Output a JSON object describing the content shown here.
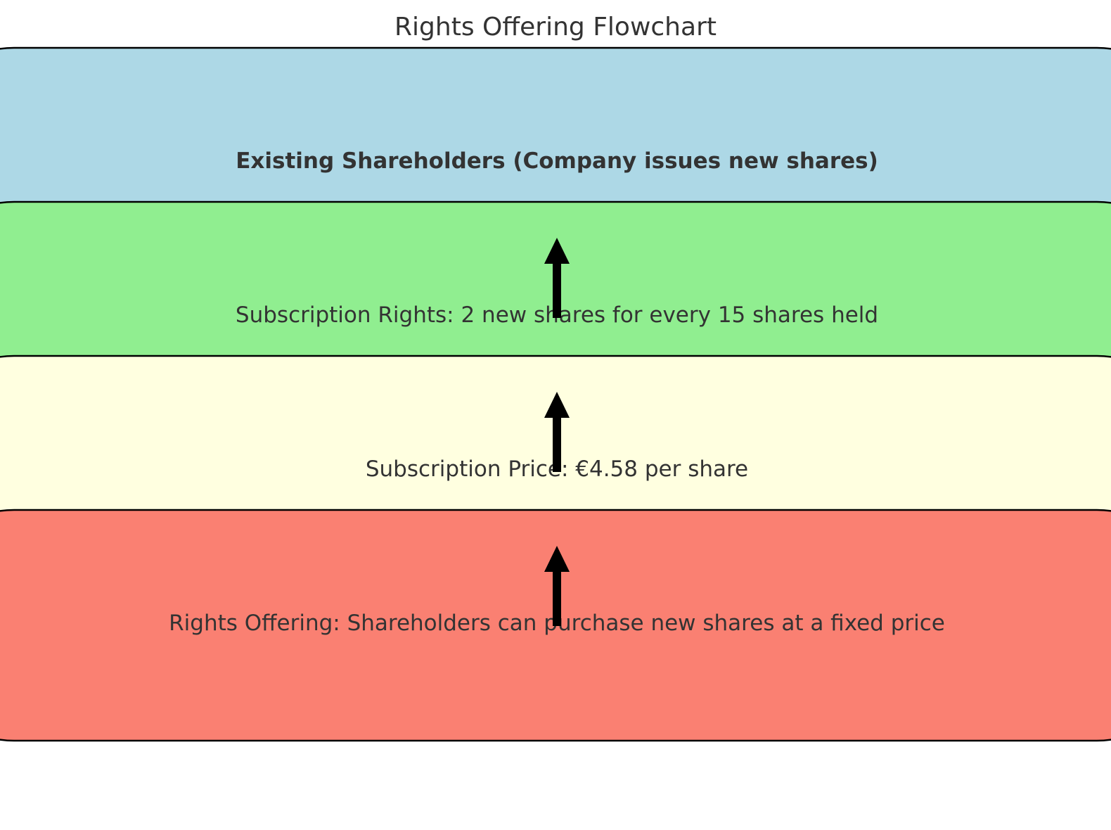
{
  "title": "Rights Offering Flowchart",
  "nodes": [
    {
      "id": "shareholders",
      "label": "Existing Shareholders (Company issues new shares)",
      "fill": "#ADD8E6",
      "bold": true
    },
    {
      "id": "rights",
      "label": "Subscription Rights: 2 new shares for every 15 shares held",
      "fill": "#90EE90",
      "bold": false
    },
    {
      "id": "price",
      "label": "Subscription Price: €4.58 per share",
      "fill": "#FFFFE0",
      "bold": false
    },
    {
      "id": "offering",
      "label": "Rights Offering: Shareholders can purchase new shares at a fixed price",
      "fill": "#FA8072",
      "bold": false
    }
  ],
  "edges": [
    {
      "from": "rights",
      "to": "shareholders"
    },
    {
      "from": "price",
      "to": "rights"
    },
    {
      "from": "offering",
      "to": "price"
    }
  ],
  "colors": {
    "border": "#000000",
    "arrow": "#000000",
    "text": "#333333"
  }
}
